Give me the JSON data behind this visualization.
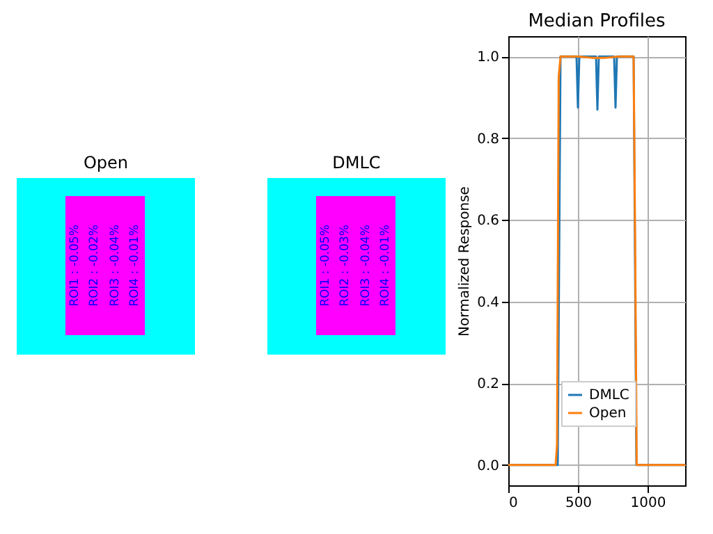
{
  "chart_data": [
    {
      "type": "other",
      "title": "Open",
      "annotations": [
        "ROI1 : -0.05%",
        "ROI2 : -0.02%",
        "ROI3 : -0.04%",
        "ROI4 : -0.01%"
      ]
    },
    {
      "type": "other",
      "title": "DMLC",
      "annotations": [
        "ROI1 : -0.05%",
        "ROI2 : -0.03%",
        "ROI3 : -0.04%",
        "ROI4 : -0.01%"
      ]
    },
    {
      "type": "line",
      "title": "Median Profiles",
      "ylabel": "Normalized Response",
      "xlim": [
        0,
        1270
      ],
      "xticks": [
        0,
        500,
        1000
      ],
      "ylim": [
        -0.05,
        1.05
      ],
      "yticks": [
        {
          "value": 0,
          "label": "0.0"
        },
        0.2,
        0.4,
        0.6,
        0.8,
        {
          "value": 1,
          "label": "1.0"
        }
      ],
      "grid": true,
      "legend": "bottom",
      "series": [
        {
          "name": "DMLC",
          "color": "#1f77b4",
          "x": [
            0,
            355,
            365,
            375,
            490,
            500,
            510,
            630,
            640,
            650,
            760,
            770,
            780,
            900,
            910,
            920,
            1270
          ],
          "values": [
            0,
            0,
            0.5,
            1.0,
            1.0,
            0.875,
            1.0,
            1.0,
            0.87,
            1.0,
            1.0,
            0.875,
            1.0,
            1.0,
            0.5,
            0,
            0
          ]
        },
        {
          "name": "Open",
          "color": "#ff7f0e",
          "x": [
            0,
            340,
            350,
            362,
            375,
            500,
            600,
            700,
            800,
            900,
            912,
            922,
            1270
          ],
          "values": [
            0,
            0,
            0.05,
            0.95,
            1.0,
            1.0,
            0.997,
            0.997,
            1.0,
            1.0,
            0.5,
            0,
            0
          ]
        }
      ]
    }
  ]
}
